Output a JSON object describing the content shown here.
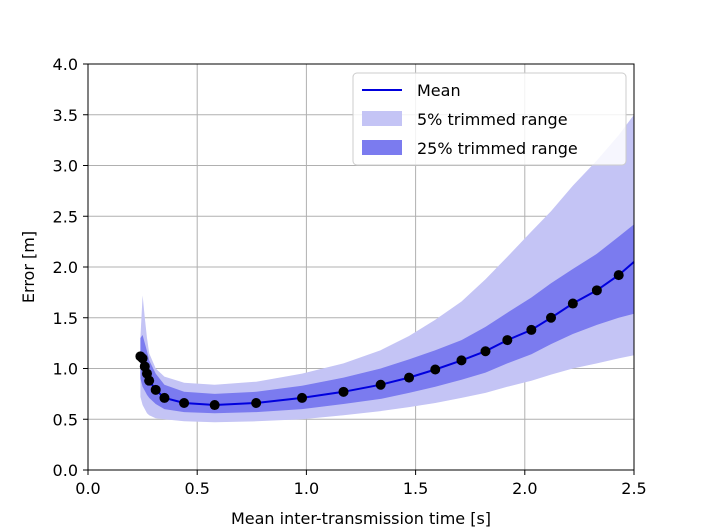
{
  "colors": {
    "mean_line": "#0000dd",
    "band_5": "#c4c4f5",
    "band_25": "#7b7bef",
    "marker": "#000000",
    "grid": "#b0b0b0"
  },
  "chart_data": {
    "type": "line",
    "title": "",
    "xlabel": "Mean inter-transmission time [s]",
    "ylabel": "Error [m]",
    "xlim": [
      0.0,
      2.5
    ],
    "ylim": [
      0.0,
      4.0
    ],
    "xticks": [
      "0.0",
      "0.5",
      "1.0",
      "1.5",
      "2.0",
      "2.5"
    ],
    "yticks": [
      "0.0",
      "0.5",
      "1.0",
      "1.5",
      "2.0",
      "2.5",
      "3.0",
      "3.5",
      "4.0"
    ],
    "grid": true,
    "legend_position": "top-right",
    "legend": [
      "Mean",
      "5% trimmed range",
      "25% trimmed range"
    ],
    "x": [
      0.24,
      0.25,
      0.26,
      0.27,
      0.28,
      0.31,
      0.35,
      0.44,
      0.58,
      0.77,
      0.98,
      1.17,
      1.34,
      1.47,
      1.59,
      1.71,
      1.82,
      1.92,
      2.03,
      2.12,
      2.22,
      2.33,
      2.43,
      2.5
    ],
    "series": [
      {
        "name": "Mean",
        "values": [
          1.12,
          1.1,
          1.02,
          0.95,
          0.88,
          0.79,
          0.71,
          0.66,
          0.64,
          0.66,
          0.71,
          0.77,
          0.84,
          0.91,
          0.99,
          1.08,
          1.17,
          1.28,
          1.38,
          1.5,
          1.64,
          1.77,
          1.92,
          2.05
        ]
      },
      {
        "name": "5% trimmed range lower",
        "values": [
          0.72,
          0.64,
          0.6,
          0.56,
          0.54,
          0.51,
          0.5,
          0.48,
          0.47,
          0.48,
          0.5,
          0.54,
          0.58,
          0.62,
          0.66,
          0.71,
          0.76,
          0.82,
          0.88,
          0.94,
          1.0,
          1.05,
          1.1,
          1.13
        ]
      },
      {
        "name": "5% trimmed range upper",
        "values": [
          1.3,
          1.72,
          1.5,
          1.3,
          1.15,
          1.0,
          0.92,
          0.86,
          0.84,
          0.87,
          0.95,
          1.05,
          1.18,
          1.32,
          1.48,
          1.66,
          1.88,
          2.1,
          2.35,
          2.55,
          2.8,
          3.05,
          3.3,
          3.5
        ]
      },
      {
        "name": "25% trimmed range lower",
        "values": [
          0.9,
          0.82,
          0.78,
          0.74,
          0.71,
          0.65,
          0.6,
          0.57,
          0.56,
          0.57,
          0.6,
          0.65,
          0.7,
          0.76,
          0.82,
          0.89,
          0.96,
          1.05,
          1.14,
          1.24,
          1.34,
          1.43,
          1.5,
          1.54
        ]
      },
      {
        "name": "25% trimmed range upper",
        "values": [
          1.3,
          1.33,
          1.25,
          1.17,
          1.08,
          0.95,
          0.84,
          0.77,
          0.75,
          0.77,
          0.83,
          0.91,
          1.0,
          1.09,
          1.18,
          1.28,
          1.41,
          1.55,
          1.7,
          1.84,
          1.98,
          2.13,
          2.3,
          2.42
        ]
      }
    ],
    "markers": {
      "x": [
        0.24,
        0.25,
        0.26,
        0.27,
        0.28,
        0.31,
        0.35,
        0.44,
        0.58,
        0.77,
        0.98,
        1.17,
        1.34,
        1.47,
        1.59,
        1.71,
        1.82,
        1.92,
        2.03,
        2.12,
        2.22,
        2.33,
        2.43
      ],
      "y": [
        1.12,
        1.1,
        1.02,
        0.95,
        0.88,
        0.79,
        0.71,
        0.66,
        0.64,
        0.66,
        0.71,
        0.77,
        0.84,
        0.91,
        0.99,
        1.08,
        1.17,
        1.28,
        1.38,
        1.5,
        1.64,
        1.77,
        1.92
      ]
    }
  }
}
